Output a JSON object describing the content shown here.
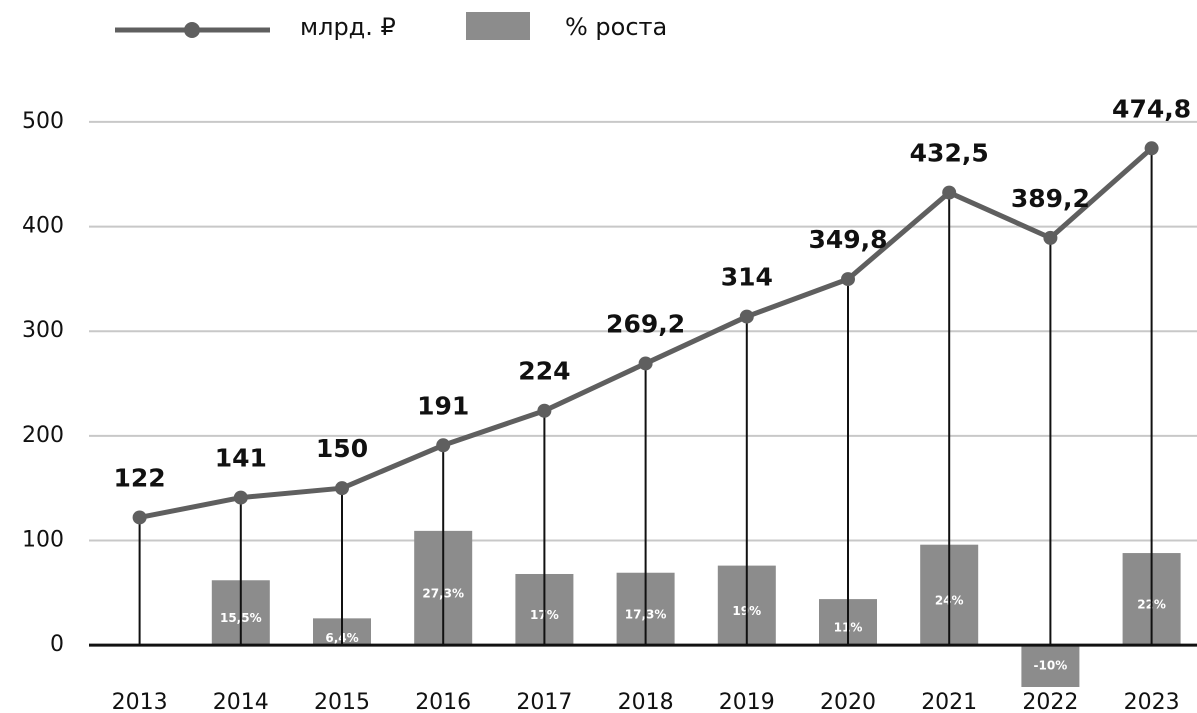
{
  "chart_data": {
    "type": "bar_line",
    "categories": [
      "2013",
      "2014",
      "2015",
      "2016",
      "2017",
      "2018",
      "2019",
      "2020",
      "2021",
      "2022",
      "2023"
    ],
    "series": [
      {
        "name": "млрд. ₽",
        "type": "line",
        "color": "#5f5f5f",
        "values": [
          122,
          141,
          150,
          191,
          224,
          269.2,
          314,
          349.8,
          432.5,
          389.2,
          474.8
        ],
        "value_labels": [
          "122",
          "141",
          "150",
          "191",
          "224",
          "269,2",
          "314",
          "349,8",
          "432,5",
          "389,2",
          "474,8"
        ]
      },
      {
        "name": "% роста",
        "type": "bar",
        "axis": "y2",
        "color": "#8c8c8c",
        "values": [
          null,
          15.5,
          6.4,
          27.3,
          17,
          17.3,
          19,
          11,
          24,
          -10,
          22
        ],
        "value_labels": [
          null,
          "15,5%",
          "6,4%",
          "27,3%",
          "17%",
          "17,3%",
          "19%",
          "11%",
          "24%",
          "-10%",
          "22%"
        ]
      }
    ],
    "ylim": [
      -40,
      520
    ],
    "yticks": [
      0,
      100,
      200,
      300,
      400,
      500
    ],
    "y2lim": [
      -10,
      130
    ],
    "grid": true,
    "legend": "top-left"
  }
}
